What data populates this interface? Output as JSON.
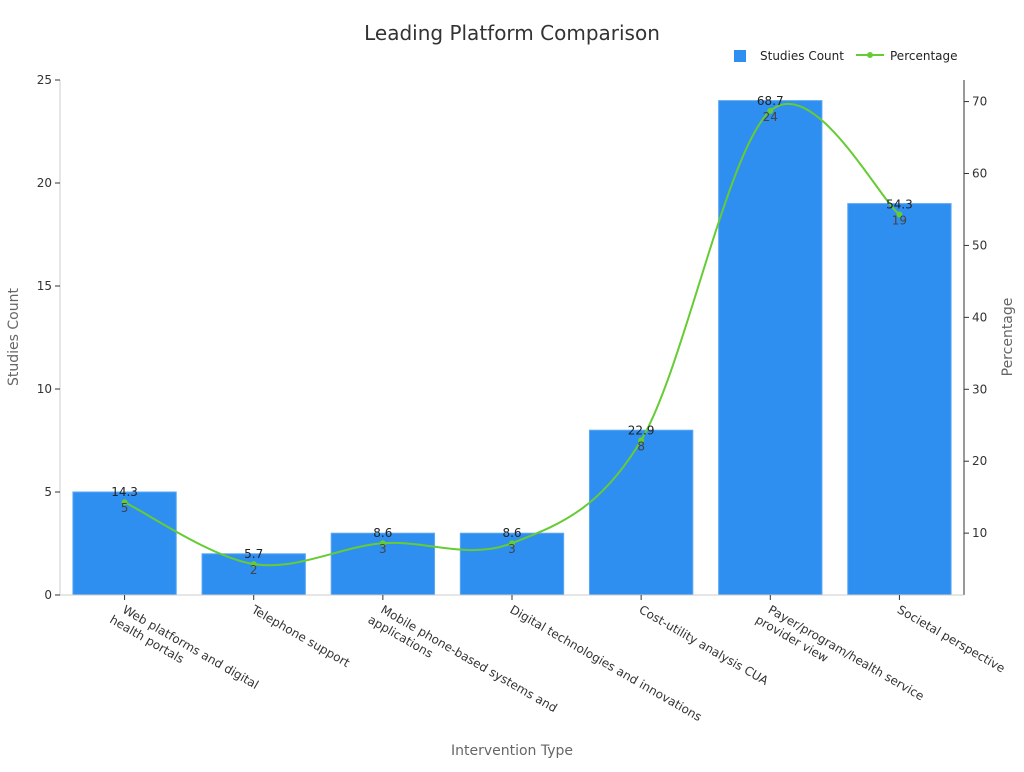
{
  "chart_data": {
    "type": "bar",
    "title": "Leading Platform Comparison",
    "xlabel": "Intervention Type",
    "ylabel_left": "Studies Count",
    "ylabel_right": "Percentage",
    "categories": [
      [
        "Web platforms and digital",
        "health portals"
      ],
      [
        "Telephone support"
      ],
      [
        "Mobile phone-based systems and",
        "applications"
      ],
      [
        "Digital technologies and innovations"
      ],
      [
        "Cost-utility analysis CUA"
      ],
      [
        "Payer/program/health service",
        "provider view"
      ],
      [
        "Societal perspective"
      ]
    ],
    "series": [
      {
        "name": "Studies Count",
        "type": "bar",
        "axis": "left",
        "values": [
          5,
          2,
          3,
          3,
          8,
          24,
          19
        ]
      },
      {
        "name": "Percentage",
        "type": "line",
        "axis": "right",
        "values": [
          14.3,
          5.7,
          8.6,
          8.6,
          22.9,
          68.7,
          54.3
        ]
      }
    ],
    "ylim_left": [
      0,
      25
    ],
    "yticks_left": [
      0,
      5,
      10,
      15,
      20,
      25
    ],
    "ylim_right": [
      1.4,
      73
    ],
    "yticks_right": [
      10,
      20,
      30,
      40,
      50,
      60,
      70
    ],
    "legend": "top-right",
    "grid": false,
    "colors": {
      "bar": "#2f8ff0",
      "line": "#66cc33",
      "axis": "#333333",
      "label": "#666666",
      "title": "#333333"
    }
  }
}
